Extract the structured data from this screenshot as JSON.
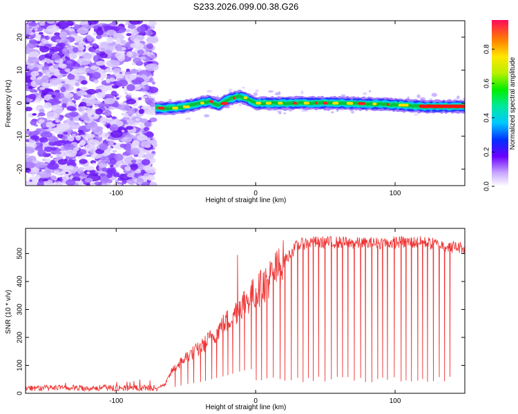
{
  "title": "S233.2026.099.00.38.G26",
  "chart_data": [
    {
      "type": "heatmap",
      "xlabel": "Height of straight line (km)",
      "ylabel": "Frequency (Hz)",
      "xlim": [
        -165,
        150
      ],
      "ylim": [
        -25,
        25
      ],
      "x_ticks": [
        -100,
        0,
        100
      ],
      "y_ticks": [
        -20,
        -10,
        0,
        10,
        20
      ],
      "colorbar": {
        "label": "Normalized spectral amplitude",
        "range": [
          0,
          0.97
        ],
        "ticks": [
          "0.0",
          "0.2",
          "0.4",
          "0.6",
          "0.8"
        ],
        "tick_values": [
          0,
          0.2,
          0.4,
          0.6,
          0.8
        ]
      },
      "noise_region_x": [
        -165,
        -73
      ],
      "signal_ridge": {
        "x": [
          -73,
          -60,
          -50,
          -40,
          -33,
          -27,
          -20,
          -13,
          -7,
          0,
          30,
          60,
          90,
          110,
          120,
          140,
          150
        ],
        "freq": [
          -1.5,
          -1.5,
          -1,
          0,
          0.5,
          -0.5,
          1,
          2,
          1.5,
          0,
          0,
          0,
          -0.3,
          -0.8,
          -1,
          -1,
          -1
        ]
      },
      "series": [
        {
          "name": "spectral amplitude",
          "values": "heatmap"
        }
      ]
    },
    {
      "type": "line",
      "xlabel": "Height of straight line (km)",
      "ylabel": "SNR (10 * v/v)",
      "xlim": [
        -165,
        150
      ],
      "ylim": [
        0,
        590
      ],
      "x_ticks": [
        -100,
        0,
        100
      ],
      "y_ticks": [
        0,
        100,
        200,
        300,
        400,
        500
      ],
      "series": [
        {
          "name": "SNR",
          "color": "#ee3333",
          "envelope_x": [
            -165,
            -100,
            -70,
            -65,
            -60,
            -50,
            -40,
            -30,
            -20,
            -10,
            0,
            10,
            20,
            25,
            30,
            40,
            60,
            80,
            100,
            120,
            140,
            150
          ],
          "envelope_y": [
            20,
            20,
            22,
            30,
            80,
            130,
            160,
            210,
            260,
            320,
            360,
            410,
            470,
            500,
            530,
            540,
            540,
            535,
            540,
            540,
            525,
            520
          ],
          "dropouts_x_range": [
            -60,
            140
          ],
          "dropout_min": [
            40,
            60
          ],
          "spike_x": [
            -13
          ],
          "spike_y": [
            495
          ]
        }
      ]
    }
  ],
  "colors": {
    "snr_line": "#ee3333",
    "ridge_edge": "#00d8ff",
    "ridge_core": "#ff2020",
    "noise": "#7a2cff"
  }
}
